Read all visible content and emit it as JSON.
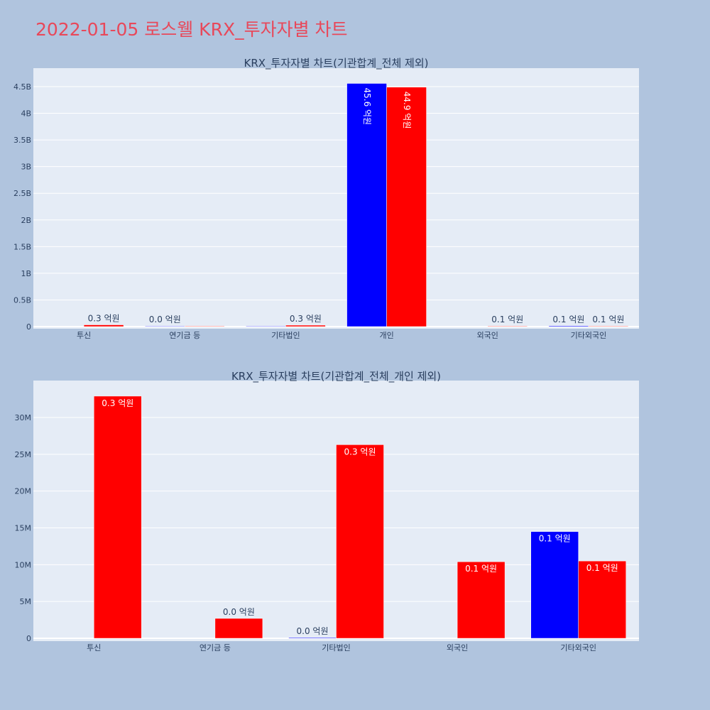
{
  "title": "2022-01-05 로스웰 KRX_투자자별 차트",
  "colors": {
    "page_bg": "#b0c4de",
    "plot_bg": "#e5ecf6",
    "grid": "#ffffff",
    "series_blue": "#0000ff",
    "series_red": "#ff0000",
    "title_color": "#e8485a"
  },
  "chart_data": [
    {
      "type": "bar",
      "title": "KRX_투자자별 차트(기관합계_전체 제외)",
      "categories": [
        "투신",
        "연기금 등",
        "기타법인",
        "개인",
        "외국인",
        "기타외국인"
      ],
      "ylim": [
        0,
        4800000000.0
      ],
      "yticks": [
        0,
        500000000.0,
        1000000000.0,
        1500000000.0,
        2000000000.0,
        2500000000.0,
        3000000000.0,
        3500000000.0,
        4000000000.0,
        4500000000.0
      ],
      "ytick_labels": [
        "0",
        "0.5B",
        "1B",
        "1.5B",
        "2B",
        "2.5B",
        "3B",
        "3.5B",
        "4B",
        "4.5B"
      ],
      "grid": true,
      "label_orientation": "vertical-inside-large",
      "series": [
        {
          "color": "#0000ff",
          "values": [
            null,
            0,
            100000,
            4560000000,
            null,
            14500000
          ],
          "labels": [
            null,
            "0.0 억원",
            "",
            "45.6 억원",
            null,
            "0.1 억원"
          ]
        },
        {
          "color": "#ff0000",
          "values": [
            32900000,
            2700000,
            26300000,
            4490000000,
            10400000,
            10500000
          ],
          "labels": [
            "0.3 억원",
            "",
            "0.3 억원",
            "44.9 억원",
            "0.1 억원",
            "0.1 억원"
          ]
        }
      ]
    },
    {
      "type": "bar",
      "title": "KRX_투자자별 차트(기관합계_전체_개인 제외)",
      "categories": [
        "투신",
        "연기금 등",
        "기타법인",
        "외국인",
        "기타외국인"
      ],
      "ylim": [
        0,
        34500000
      ],
      "yticks": [
        0,
        5000000,
        10000000,
        15000000,
        20000000,
        25000000,
        30000000
      ],
      "ytick_labels": [
        "0",
        "5M",
        "10M",
        "15M",
        "20M",
        "25M",
        "30M"
      ],
      "grid": true,
      "series": [
        {
          "color": "#0000ff",
          "values": [
            null,
            null,
            100000,
            null,
            14500000
          ],
          "labels": [
            null,
            null,
            "0.0 억원",
            null,
            "0.1 억원"
          ]
        },
        {
          "color": "#ff0000",
          "values": [
            32900000,
            2700000,
            26300000,
            10400000,
            10500000
          ],
          "labels": [
            "0.3 억원",
            "0.0 억원",
            "0.3 억원",
            "0.1 억원",
            "0.1 억원"
          ]
        }
      ]
    }
  ]
}
